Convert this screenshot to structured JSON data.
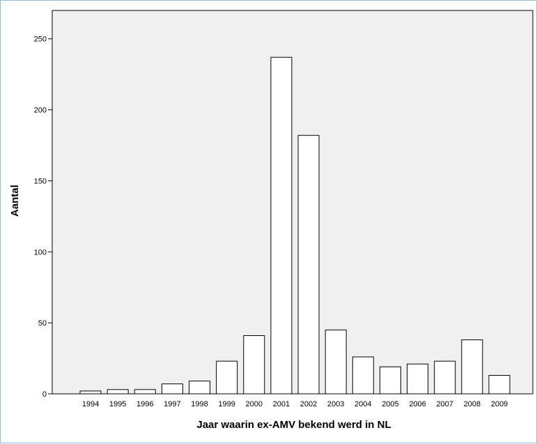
{
  "chart_data": {
    "type": "bar",
    "title": "",
    "xlabel": "Jaar waarin ex-AMV bekend werd in NL",
    "ylabel": "Aantal",
    "categories": [
      "1994",
      "1995",
      "1996",
      "1997",
      "1998",
      "1999",
      "2000",
      "2001",
      "2002",
      "2003",
      "2004",
      "2005",
      "2006",
      "2007",
      "2008",
      "2009"
    ],
    "values": [
      2,
      3,
      3,
      7,
      9,
      23,
      41,
      237,
      182,
      45,
      26,
      19,
      21,
      23,
      38,
      13
    ],
    "ylim": [
      0,
      270
    ],
    "yticks": [
      0,
      50,
      100,
      150,
      200,
      250
    ],
    "grid": false,
    "legend": "none",
    "colors": {
      "plot_background": "#f0f0f0",
      "bar_fill": "#ffffff",
      "bar_stroke": "#000000"
    }
  }
}
